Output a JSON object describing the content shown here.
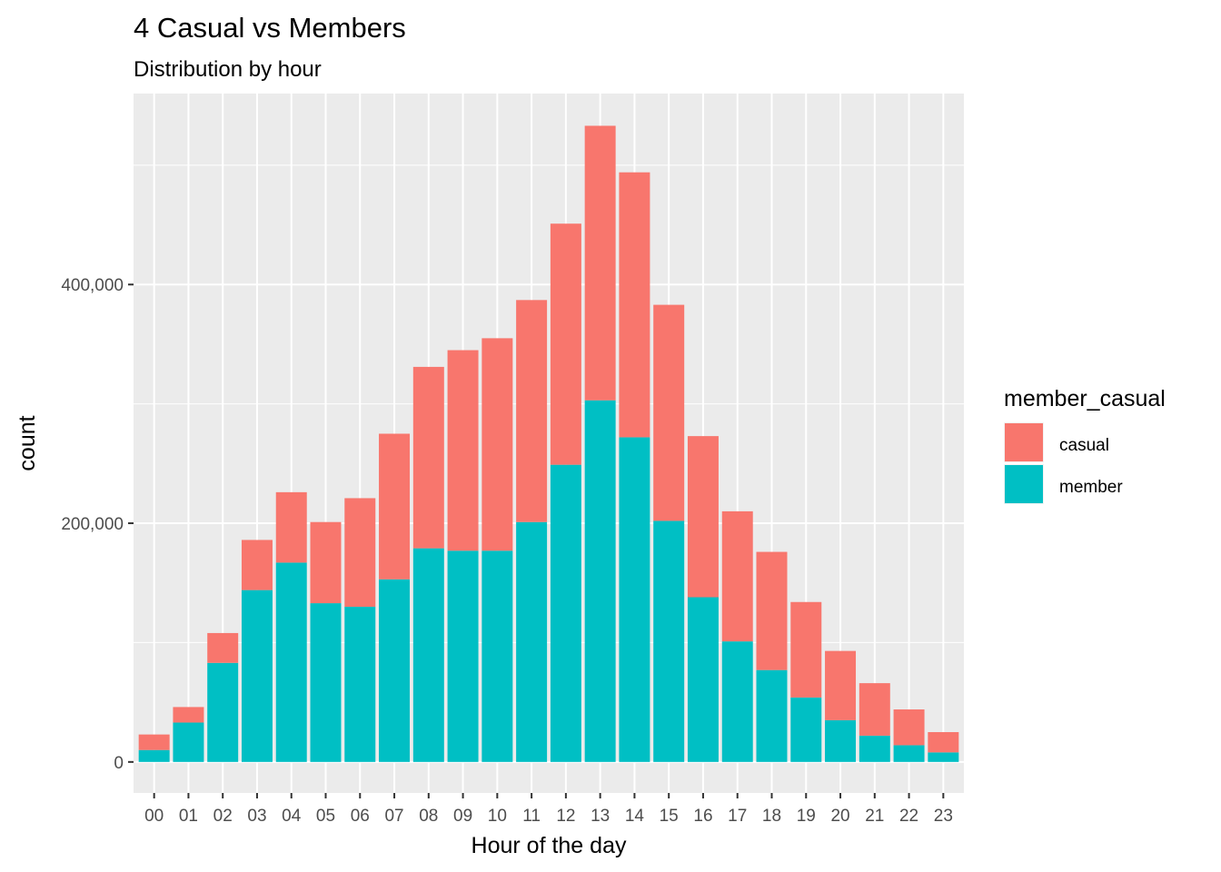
{
  "chart_data": {
    "type": "bar",
    "stacked": true,
    "title": "4 Casual vs Members",
    "subtitle": "Distribution by hour",
    "xlabel": "Hour of the day",
    "ylabel": "count",
    "categories": [
      "00",
      "01",
      "02",
      "03",
      "04",
      "05",
      "06",
      "07",
      "08",
      "09",
      "10",
      "11",
      "12",
      "13",
      "14",
      "15",
      "16",
      "17",
      "18",
      "19",
      "20",
      "21",
      "22",
      "23"
    ],
    "series": [
      {
        "name": "member",
        "color": "#00BFC4",
        "values": [
          10000,
          33000,
          83000,
          144000,
          167000,
          133000,
          130000,
          153000,
          179000,
          177000,
          177000,
          201000,
          249000,
          303000,
          272000,
          202000,
          138000,
          101000,
          77000,
          54000,
          35000,
          22000,
          14000,
          8000
        ]
      },
      {
        "name": "casual",
        "color": "#F8766D",
        "values": [
          13000,
          13000,
          25000,
          42000,
          59000,
          68000,
          91000,
          122000,
          152000,
          168000,
          178000,
          186000,
          202000,
          230000,
          222000,
          181000,
          135000,
          109000,
          99000,
          80000,
          58000,
          44000,
          30000,
          17000
        ]
      }
    ],
    "yticks": [
      0,
      200000,
      400000
    ],
    "ytick_labels": [
      "0",
      "200,000",
      "400,000"
    ],
    "ylim": [
      -26000,
      560000
    ],
    "grid": true,
    "panel_background": "#EBEBEB",
    "legend": {
      "title": "member_casual",
      "position": "right",
      "entries": [
        "casual",
        "member"
      ]
    }
  }
}
